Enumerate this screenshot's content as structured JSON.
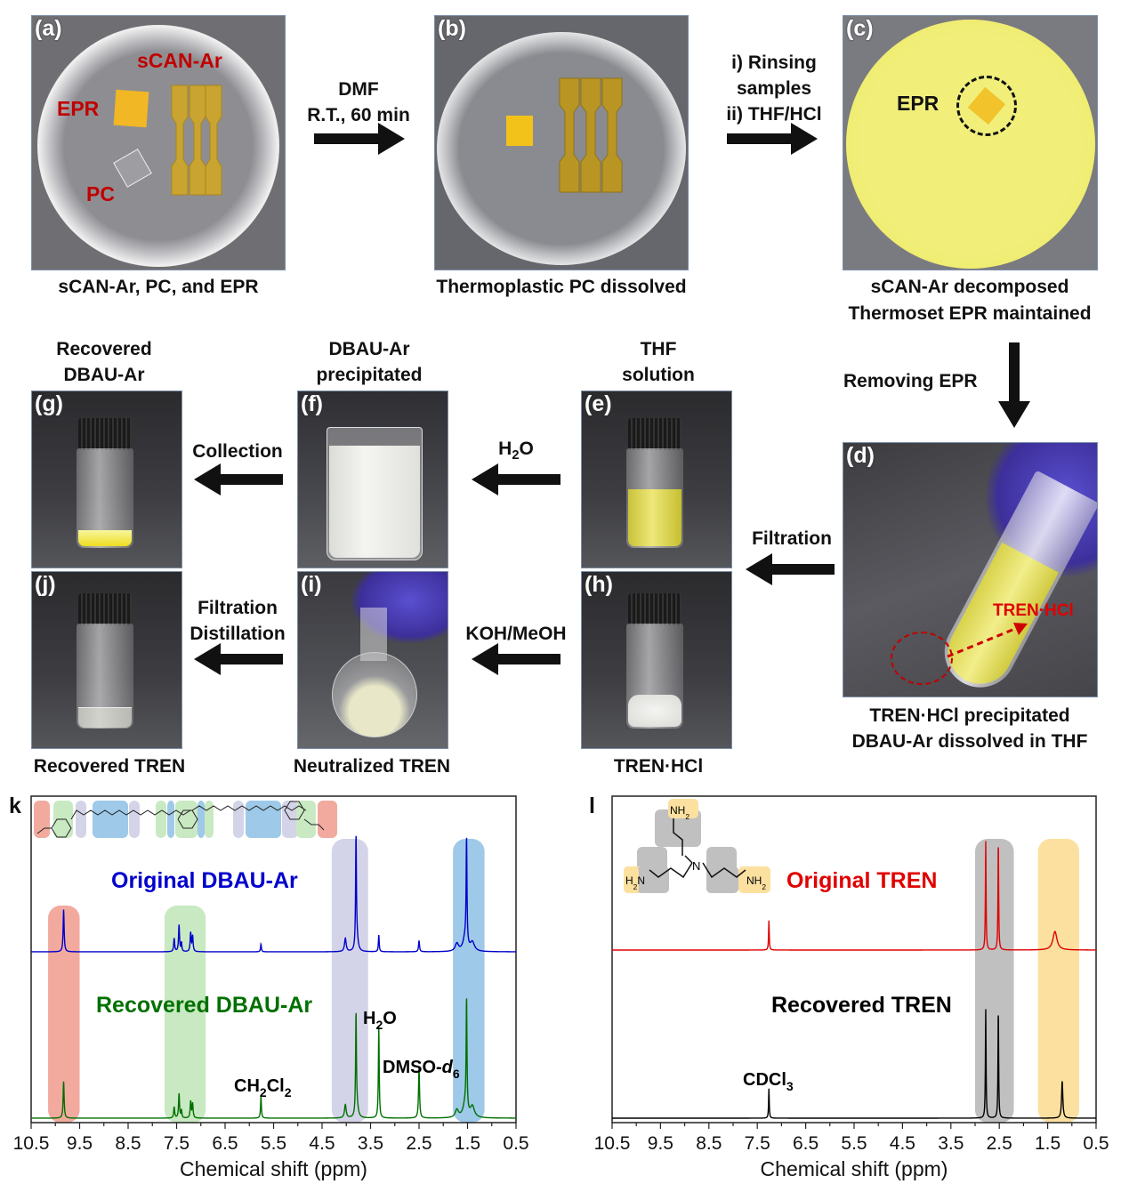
{
  "panels": {
    "a": {
      "label": "(a)",
      "caption": "sCAN-Ar, PC, and EPR",
      "tags": [
        "sCAN-Ar",
        "EPR",
        "PC"
      ]
    },
    "b": {
      "label": "(b)",
      "caption": "Thermoplastic PC dissolved"
    },
    "c": {
      "label": "(c)",
      "caption_lines": [
        "sCAN-Ar decomposed",
        "Thermoset EPR maintained"
      ],
      "tag": "EPR"
    },
    "d": {
      "label": "(d)",
      "caption_lines": [
        "TREN·HCl precipitated",
        "DBAU-Ar dissolved in THF"
      ],
      "tag": "TREN·HCl"
    },
    "e": {
      "label": "(e)",
      "title_lines": [
        "THF",
        "solution"
      ]
    },
    "f": {
      "label": "(f)",
      "title_lines": [
        "DBAU-Ar",
        "precipitated"
      ]
    },
    "g": {
      "label": "(g)",
      "title_lines": [
        "Recovered",
        "DBAU-Ar"
      ]
    },
    "h": {
      "label": "(h)",
      "caption": "TREN·HCl"
    },
    "i": {
      "label": "(i)",
      "caption": "Neutralized TREN"
    },
    "j": {
      "label": "(j)",
      "caption": "Recovered TREN"
    }
  },
  "arrows": {
    "a_to_b": [
      "DMF",
      "R.T., 60 min"
    ],
    "b_to_c": [
      "i) Rinsing",
      "samples",
      "ii) THF/HCl"
    ],
    "c_to_d": "Removing EPR",
    "d_to_e": "Filtration",
    "e_to_f": {
      "main": "H",
      "sub": "2",
      "tail": "O"
    },
    "f_to_g": "Collection",
    "d_to_h": "Filtration",
    "h_to_i": "KOH/MeOH",
    "i_to_j": [
      "Filtration",
      "Distillation"
    ]
  },
  "chart_data": [
    {
      "panel": "k",
      "type": "line",
      "xlabel": "Chemical shift (ppm)",
      "xlim": [
        10.5,
        0.5
      ],
      "x_reversed": true,
      "xticks": [
        "10.5",
        "9.5",
        "8.5",
        "7.5",
        "6.5",
        "5.5",
        "4.5",
        "3.5",
        "2.5",
        "1.5",
        "0.5"
      ],
      "highlights": [
        {
          "range": [
            10.15,
            9.5
          ],
          "color": "#f2a99e"
        },
        {
          "range": [
            7.75,
            6.9
          ],
          "color": "#c9e9c2"
        },
        {
          "range": [
            4.3,
            3.55
          ],
          "color": "#d4d4e8"
        },
        {
          "range": [
            1.8,
            1.15
          ],
          "color": "#9ec9e8"
        }
      ],
      "series": [
        {
          "name": "Original DBAU-Ar",
          "color": "#0000cc",
          "peaks": [
            [
              9.83,
              0.38,
              0.012
            ],
            [
              7.55,
              0.12,
              0.012
            ],
            [
              7.45,
              0.24,
              0.012
            ],
            [
              7.4,
              0.08,
              0.01
            ],
            [
              7.21,
              0.17,
              0.012
            ],
            [
              7.17,
              0.14,
              0.012
            ],
            [
              5.76,
              0.07,
              0.01
            ],
            [
              4.02,
              0.12,
              0.02
            ],
            [
              3.8,
              1.0,
              0.01
            ],
            [
              3.78,
              0.1,
              0.03
            ],
            [
              3.33,
              0.15,
              0.01
            ],
            [
              2.5,
              0.1,
              0.012
            ],
            [
              1.72,
              0.07,
              0.04
            ],
            [
              1.52,
              0.95,
              0.01
            ],
            [
              1.55,
              0.12,
              0.05
            ],
            [
              1.4,
              0.08,
              0.05
            ]
          ]
        },
        {
          "name": "Recovered DBAU-Ar",
          "color": "#007000",
          "peaks": [
            [
              9.83,
              0.33,
              0.012
            ],
            [
              7.55,
              0.1,
              0.012
            ],
            [
              7.45,
              0.22,
              0.012
            ],
            [
              7.4,
              0.07,
              0.01
            ],
            [
              7.21,
              0.15,
              0.012
            ],
            [
              7.17,
              0.13,
              0.012
            ],
            [
              5.76,
              0.2,
              0.01
            ],
            [
              4.02,
              0.12,
              0.02
            ],
            [
              3.8,
              0.9,
              0.01
            ],
            [
              3.78,
              0.1,
              0.03
            ],
            [
              3.33,
              0.82,
              0.01
            ],
            [
              2.5,
              0.46,
              0.012
            ],
            [
              1.72,
              0.07,
              0.04
            ],
            [
              1.52,
              1.0,
              0.01
            ],
            [
              1.55,
              0.12,
              0.05
            ],
            [
              1.4,
              0.1,
              0.05
            ]
          ]
        }
      ],
      "annotations": [
        {
          "main": "H",
          "sub": "2",
          "tail": "O"
        },
        {
          "main": "DMSO-",
          "italic": "d",
          "sub": "6"
        },
        {
          "main": "CH",
          "sub": "2",
          "tail": "Cl",
          "sub2": "2"
        }
      ]
    },
    {
      "panel": "l",
      "type": "line",
      "xlabel": "Chemical shift (ppm)",
      "xlim": [
        10.5,
        0.5
      ],
      "x_reversed": true,
      "xticks": [
        "10.5",
        "9.5",
        "8.5",
        "7.5",
        "6.5",
        "5.5",
        "4.5",
        "3.5",
        "2.5",
        "1.5",
        "0.5"
      ],
      "highlights": [
        {
          "range": [
            3.0,
            2.2
          ],
          "color": "#c0c0c0"
        },
        {
          "range": [
            1.7,
            0.85
          ],
          "color": "#fbe0a0"
        }
      ],
      "series": [
        {
          "name": "Original TREN",
          "color": "#e00000",
          "peaks": [
            [
              7.26,
              0.27,
              0.008
            ],
            [
              2.78,
              1.0,
              0.008
            ],
            [
              2.52,
              1.0,
              0.008
            ],
            [
              1.35,
              0.17,
              0.05
            ]
          ]
        },
        {
          "name": "Recovered TREN",
          "color": "#000000",
          "peaks": [
            [
              7.26,
              0.27,
              0.008
            ],
            [
              2.78,
              1.0,
              0.008
            ],
            [
              2.52,
              1.0,
              0.008
            ],
            [
              1.2,
              0.34,
              0.015
            ]
          ]
        }
      ],
      "annotations": [
        {
          "main": "CDCl",
          "sub": "3"
        }
      ],
      "structure_labels": [
        "NH2",
        "H2N",
        "N",
        "NH2"
      ]
    }
  ]
}
